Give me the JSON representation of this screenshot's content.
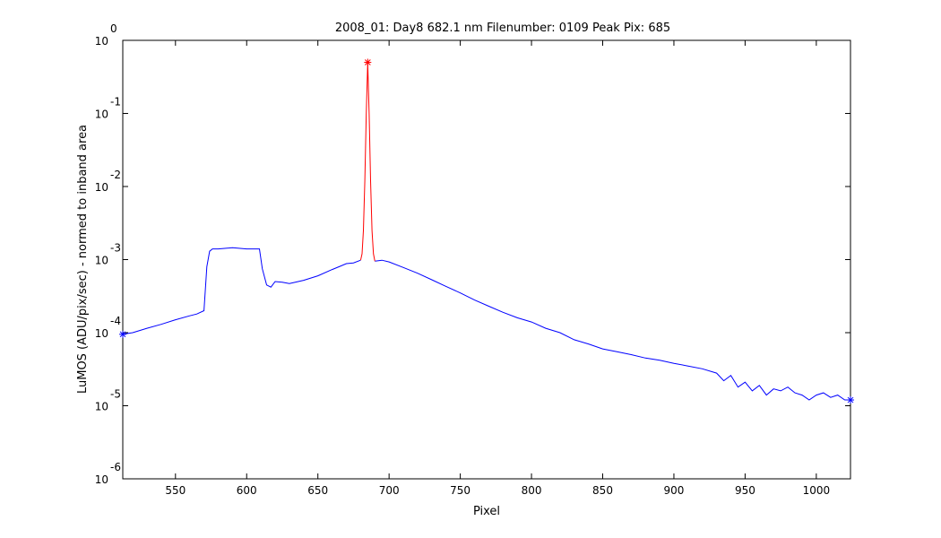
{
  "chart_data": {
    "type": "line",
    "title": "2008_01: Day8  682.1 nm  Filenumber: 0109 Peak Pix: 685",
    "xlabel": "Pixel",
    "ylabel": "LuMOS (ADU/pix/sec) - normed to inband area",
    "xlim": [
      513,
      1024
    ],
    "ylim": [
      1e-06,
      1
    ],
    "yscale": "log",
    "grid": false,
    "x_ticks": [
      550,
      600,
      650,
      700,
      750,
      800,
      850,
      900,
      950,
      1000
    ],
    "y_ticks": [
      {
        "base": "10",
        "exp": "0",
        "value": 1
      },
      {
        "base": "10",
        "exp": "-1",
        "value": 0.1
      },
      {
        "base": "10",
        "exp": "-2",
        "value": 0.01
      },
      {
        "base": "10",
        "exp": "-3",
        "value": 0.001
      },
      {
        "base": "10",
        "exp": "-4",
        "value": 0.0001
      },
      {
        "base": "10",
        "exp": "-5",
        "value": 1e-05
      },
      {
        "base": "10",
        "exp": "-6",
        "value": 1e-06
      }
    ],
    "colors": {
      "outband": "#0000ff",
      "inband": "#ff0000",
      "axis": "#000000"
    },
    "series": [
      {
        "role": "out-of-band",
        "color": "#0000ff",
        "x": [
          513,
          520,
          530,
          540,
          550,
          560,
          565,
          570,
          572,
          574,
          576,
          580,
          590,
          600,
          605,
          609,
          611,
          614,
          617,
          620,
          625,
          630,
          640,
          650,
          660,
          665,
          670,
          675,
          680,
          null,
          690,
          695,
          700,
          710,
          720,
          730,
          740,
          750,
          760,
          770,
          780,
          790,
          800,
          810,
          820,
          830,
          840,
          850,
          860,
          870,
          880,
          890,
          900,
          910,
          920,
          930,
          935,
          940,
          945,
          950,
          955,
          960,
          965,
          970,
          975,
          980,
          985,
          990,
          995,
          1000,
          1005,
          1010,
          1015,
          1020,
          1024
        ],
        "y": [
          9.5e-05,
          0.0001,
          0.000115,
          0.00013,
          0.00015,
          0.00017,
          0.00018,
          0.0002,
          0.0008,
          0.0013,
          0.0014,
          0.0014,
          0.00145,
          0.0014,
          0.0014,
          0.0014,
          0.00075,
          0.00045,
          0.00042,
          0.0005,
          0.00049,
          0.00047,
          0.00052,
          0.0006,
          0.00073,
          0.0008,
          0.00088,
          0.0009,
          0.00098,
          null,
          0.00095,
          0.00098,
          0.00093,
          0.00078,
          0.00065,
          0.00053,
          0.00043,
          0.00035,
          0.00028,
          0.00023,
          0.00019,
          0.00016,
          0.00014,
          0.000115,
          0.0001,
          8e-05,
          7e-05,
          6e-05,
          5.5e-05,
          5e-05,
          4.5e-05,
          4.2e-05,
          3.8e-05,
          3.5e-05,
          3.2e-05,
          2.8e-05,
          2.2e-05,
          2.6e-05,
          1.8e-05,
          2.1e-05,
          1.6e-05,
          1.9e-05,
          1.4e-05,
          1.7e-05,
          1.6e-05,
          1.8e-05,
          1.5e-05,
          1.4e-05,
          1.2e-05,
          1.4e-05,
          1.5e-05,
          1.3e-05,
          1.4e-05,
          1.2e-05,
          1.2e-05
        ]
      },
      {
        "role": "in-band",
        "color": "#ff0000",
        "x": [
          680,
          681,
          682,
          683,
          684,
          685,
          686,
          687,
          688,
          689,
          690
        ],
        "y": [
          0.00098,
          0.0012,
          0.0025,
          0.012,
          0.1,
          0.5,
          0.1,
          0.012,
          0.0025,
          0.0012,
          0.00095
        ]
      }
    ],
    "markers": [
      {
        "x": 685,
        "y": 0.5,
        "color": "#ff0000",
        "symbol": "*"
      },
      {
        "x": 1024,
        "y": 1.2e-05,
        "color": "#0000ff",
        "symbol": "*"
      },
      {
        "x": 513,
        "y": 9.5e-05,
        "color": "#0000ff",
        "symbol": "*"
      }
    ]
  }
}
